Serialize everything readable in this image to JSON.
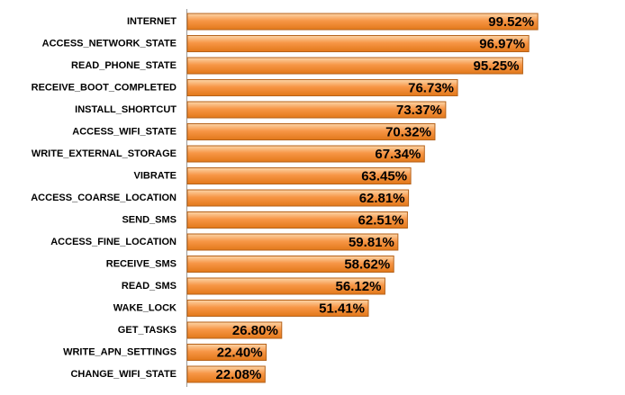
{
  "chart_data": {
    "type": "bar",
    "orientation": "horizontal",
    "color": "#f79646",
    "categories": [
      "INTERNET",
      "ACCESS_NETWORK_STATE",
      "READ_PHONE_STATE",
      "RECEIVE_BOOT_COMPLETED",
      "INSTALL_SHORTCUT",
      "ACCESS_WIFI_STATE",
      "WRITE_EXTERNAL_STORAGE",
      "VIBRATE",
      "ACCESS_COARSE_LOCATION",
      "SEND_SMS",
      "ACCESS_FINE_LOCATION",
      "RECEIVE_SMS",
      "READ_SMS",
      "WAKE_LOCK",
      "GET_TASKS",
      "WRITE_APN_SETTINGS",
      "CHANGE_WIFI_STATE"
    ],
    "values": [
      99.52,
      96.97,
      95.25,
      76.73,
      73.37,
      70.32,
      67.34,
      63.45,
      62.81,
      62.51,
      59.81,
      58.62,
      56.12,
      51.41,
      26.8,
      22.4,
      22.08
    ],
    "value_labels": [
      "99.52%",
      "96.97%",
      "95.25%",
      "76.73%",
      "73.37%",
      "70.32%",
      "67.34%",
      "63.45%",
      "62.81%",
      "62.51%",
      "59.81%",
      "58.62%",
      "56.12%",
      "51.41%",
      "26.80%",
      "22.40%",
      "22.08%"
    ]
  }
}
